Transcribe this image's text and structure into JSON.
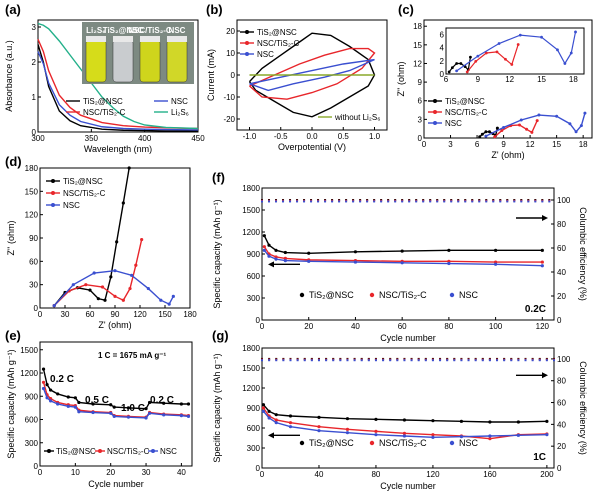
{
  "panels": {
    "a": {
      "letter": "(a)",
      "xlabel": "Wavelength (nm)",
      "ylabel": "Absorbance (a.u.)",
      "xticks": [
        "300",
        "350",
        "400",
        "450"
      ],
      "yticks": [
        "0",
        "1",
        "2",
        "3"
      ],
      "vial_labels": [
        "Li₂S₆",
        "TiS₂@NSC",
        "NSC/TiS₂-C",
        "NSC"
      ],
      "legend": [
        "TiS₂@NSC",
        "NSC",
        "NSC/TiS₂-C",
        "Li₂S₆"
      ]
    },
    "b": {
      "letter": "(b)",
      "xlabel": "Overpotential (V)",
      "ylabel": "Current (mA)",
      "xticks": [
        "-1.0",
        "-0.5",
        "0.0",
        "0.5",
        "1.0"
      ],
      "yticks": [
        "-20",
        "-10",
        "0",
        "10",
        "20"
      ],
      "legend": [
        "TiS₂@NSC",
        "NSC/TiS₂-C",
        "NSC"
      ],
      "note": "without Li₂S₆"
    },
    "c": {
      "letter": "(c)",
      "xlabel": "Z' (ohm)",
      "ylabel": "Z'' (ohm)",
      "xticks": [
        "0",
        "3",
        "6",
        "9",
        "12",
        "15",
        "18"
      ],
      "yticks": [
        "0",
        "3",
        "6",
        "9",
        "12",
        "15",
        "18"
      ],
      "inset_xticks": [
        "6",
        "9",
        "12",
        "15",
        "18"
      ],
      "inset_yticks": [
        "0",
        "2",
        "4",
        "6"
      ],
      "legend": [
        "TiS₂@NSC",
        "NSC/TiS₂-C",
        "NSC"
      ]
    },
    "d": {
      "letter": "(d)",
      "xlabel": "Z' (ohm)",
      "ylabel": "Z'' (ohm)",
      "xticks": [
        "0",
        "30",
        "60",
        "90",
        "120",
        "150",
        "180"
      ],
      "yticks": [
        "0",
        "30",
        "60",
        "90",
        "120",
        "150",
        "180"
      ],
      "legend": [
        "TiS₂@NSC",
        "NSC/TiS₂-C",
        "NSC"
      ]
    },
    "e": {
      "letter": "(e)",
      "xlabel": "Cycle number",
      "ylabel": "Specific capacity (mAh g⁻¹)",
      "xticks": [
        "0",
        "10",
        "20",
        "30",
        "40"
      ],
      "yticks": [
        "0",
        "300",
        "600",
        "900",
        "1200",
        "1500"
      ],
      "note": "1 C = 1675 mA g⁻¹",
      "rates": [
        "0.2 C",
        "0.5 C",
        "1.0 C",
        "0.2 C"
      ],
      "legend": [
        "TiS₂@NSC",
        "NSC/TiS₂-C",
        "NSC"
      ]
    },
    "f": {
      "letter": "(f)",
      "xlabel": "Cycle number",
      "ylabel": "Specific capacity (mAh g⁻¹)",
      "y2label": "Columbic efficiency (%)",
      "xticks": [
        "0",
        "20",
        "40",
        "60",
        "80",
        "100",
        "120"
      ],
      "yticks": [
        "0",
        "300",
        "600",
        "900",
        "1200",
        "1500",
        "1800"
      ],
      "y2ticks": [
        "0",
        "20",
        "40",
        "60",
        "80",
        "100"
      ],
      "rate": "0.2C",
      "legend": [
        "TiS₂@NSC",
        "NSC/TiS₂-C",
        "NSC"
      ]
    },
    "g": {
      "letter": "(g)",
      "xlabel": "Cycle number",
      "ylabel": "Specific capacity (mAh g⁻¹)",
      "y2label": "Columbic efficiency (%)",
      "xticks": [
        "0",
        "40",
        "80",
        "120",
        "160",
        "200"
      ],
      "yticks": [
        "0",
        "300",
        "600",
        "900",
        "1200",
        "1500",
        "1800"
      ],
      "y2ticks": [
        "0",
        "20",
        "40",
        "60",
        "80",
        "100"
      ],
      "rate": "1C",
      "legend": [
        "TiS₂@NSC",
        "NSC/TiS₂-C",
        "NSC"
      ]
    }
  },
  "colors": {
    "TiS2@NSC": "#000000",
    "NSC/TiS2-C": "#e8262b",
    "NSC": "#3a4fd0",
    "Li2S6": "#23b08a",
    "note": "#8aa82a"
  },
  "chart_data": [
    {
      "id": "a",
      "type": "line",
      "xlim": [
        300,
        450
      ],
      "ylim": [
        0,
        3.2
      ],
      "series": [
        {
          "name": "TiS₂@NSC",
          "x": [
            300,
            305,
            310,
            320,
            330,
            340,
            360,
            380,
            400,
            420,
            450
          ],
          "y": [
            2.5,
            2.0,
            1.3,
            0.6,
            0.32,
            0.18,
            0.08,
            0.05,
            0.04,
            0.03,
            0.03
          ]
        },
        {
          "name": "NSC",
          "x": [
            300,
            305,
            310,
            320,
            330,
            340,
            360,
            380,
            400,
            420,
            450
          ],
          "y": [
            2.3,
            1.95,
            1.4,
            0.78,
            0.48,
            0.3,
            0.15,
            0.1,
            0.08,
            0.07,
            0.06
          ]
        },
        {
          "name": "NSC/TiS₂-C",
          "x": [
            300,
            305,
            310,
            320,
            330,
            340,
            360,
            380,
            400,
            420,
            450
          ],
          "y": [
            2.65,
            2.3,
            1.75,
            1.05,
            0.7,
            0.48,
            0.27,
            0.18,
            0.14,
            0.12,
            0.1
          ]
        },
        {
          "name": "Li₂S₆",
          "x": [
            300,
            305,
            310,
            320,
            330,
            340,
            350,
            360,
            370,
            380,
            390,
            400,
            420,
            450
          ],
          "y": [
            3.1,
            3.05,
            2.95,
            2.6,
            2.2,
            1.8,
            1.4,
            1.0,
            0.7,
            0.45,
            0.3,
            0.2,
            0.13,
            0.1
          ]
        }
      ]
    },
    {
      "id": "b",
      "type": "line",
      "xlim": [
        -1.2,
        1.2
      ],
      "ylim": [
        -25,
        25
      ],
      "series": [
        {
          "name": "TiS₂@NSC",
          "x": [
            -1.0,
            -0.8,
            -0.5,
            -0.2,
            0.0,
            0.3,
            0.6,
            0.9,
            1.0,
            0.9,
            0.6,
            0.3,
            0.0,
            -0.3,
            -0.6,
            -0.9,
            -1.0
          ],
          "y": [
            -3,
            3,
            9,
            15,
            19,
            18,
            13,
            7,
            0,
            -5,
            -10,
            -15,
            -19,
            -17,
            -12,
            -7,
            -3
          ]
        },
        {
          "name": "NSC/TiS₂-C",
          "x": [
            -1.0,
            -0.6,
            -0.2,
            0.2,
            0.6,
            0.9,
            1.0,
            0.8,
            0.4,
            0.0,
            -0.4,
            -0.8,
            -1.0
          ],
          "y": [
            -5,
            0,
            5,
            9,
            12,
            12,
            10,
            3,
            -4,
            -8,
            -11,
            -10,
            -5
          ]
        },
        {
          "name": "NSC",
          "x": [
            -1.0,
            -0.5,
            0.0,
            0.5,
            1.0,
            0.6,
            0.2,
            -0.3,
            -0.7,
            -1.0
          ],
          "y": [
            -4,
            -1,
            2,
            5,
            7,
            2,
            -1,
            -4,
            -7,
            -4
          ]
        },
        {
          "name": "without Li₂S₆",
          "x": [
            -1.0,
            1.0
          ],
          "y": [
            0,
            0
          ]
        }
      ]
    },
    {
      "id": "c",
      "type": "scatter",
      "xlim": [
        0,
        19
      ],
      "ylim": [
        0,
        19
      ],
      "series": [
        {
          "name": "TiS₂@NSC",
          "x": [
            6.3,
            6.6,
            7.0,
            7.4,
            7.8,
            8.1,
            8.3
          ],
          "y": [
            0.2,
            0.6,
            1.0,
            1.0,
            0.7,
            0.4,
            1.6
          ]
        },
        {
          "name": "NSC/TiS₂-C",
          "x": [
            8.0,
            8.8,
            9.8,
            10.8,
            11.6,
            12.2,
            12.8
          ],
          "y": [
            0.2,
            1.2,
            2.0,
            2.1,
            1.4,
            0.9,
            2.8
          ]
        },
        {
          "name": "NSC",
          "x": [
            7.0,
            9.0,
            11.0,
            13.0,
            15.0,
            16.5,
            17.2,
            17.8,
            18.2
          ],
          "y": [
            0.3,
            1.7,
            2.9,
            3.7,
            3.5,
            2.3,
            1.0,
            2.0,
            4.0
          ]
        }
      ]
    },
    {
      "id": "d",
      "type": "scatter",
      "xlim": [
        0,
        180
      ],
      "ylim": [
        0,
        180
      ],
      "series": [
        {
          "name": "TiS₂@NSC",
          "x": [
            17,
            30,
            45,
            60,
            70,
            78,
            85,
            92,
            100,
            107
          ],
          "y": [
            3,
            20,
            26,
            23,
            12,
            10,
            40,
            85,
            135,
            180
          ]
        },
        {
          "name": "NSC/TiS₂-C",
          "x": [
            17,
            35,
            55,
            75,
            90,
            100,
            108,
            115,
            122
          ],
          "y": [
            3,
            22,
            30,
            27,
            15,
            10,
            25,
            55,
            88
          ]
        },
        {
          "name": "NSC",
          "x": [
            17,
            40,
            65,
            90,
            110,
            130,
            145,
            155,
            160
          ],
          "y": [
            3,
            30,
            45,
            48,
            42,
            25,
            10,
            5,
            15
          ]
        }
      ]
    },
    {
      "id": "e",
      "type": "scatter",
      "xlim": [
        0,
        43
      ],
      "ylim": [
        0,
        1600
      ],
      "series": [
        {
          "name": "TiS₂@NSC",
          "x": [
            1,
            2,
            3,
            5,
            8,
            10,
            11,
            15,
            20,
            21,
            25,
            30,
            31,
            35,
            40,
            42
          ],
          "y": [
            1250,
            1050,
            980,
            930,
            890,
            880,
            820,
            800,
            790,
            760,
            750,
            740,
            820,
            810,
            800,
            800
          ]
        },
        {
          "name": "NSC/TiS₂-C",
          "x": [
            1,
            2,
            3,
            5,
            8,
            10,
            11,
            15,
            20,
            21,
            25,
            30,
            31,
            35,
            40,
            42
          ],
          "y": [
            1080,
            920,
            870,
            820,
            790,
            780,
            720,
            700,
            690,
            650,
            640,
            630,
            690,
            670,
            660,
            650
          ]
        },
        {
          "name": "NSC",
          "x": [
            1,
            2,
            3,
            5,
            8,
            10,
            11,
            15,
            20,
            21,
            25,
            30,
            31,
            35,
            40,
            42
          ],
          "y": [
            1000,
            880,
            840,
            800,
            770,
            760,
            700,
            690,
            680,
            640,
            630,
            620,
            680,
            660,
            650,
            640
          ]
        }
      ]
    },
    {
      "id": "f",
      "type": "scatter",
      "xlim": [
        0,
        125
      ],
      "ylim": [
        0,
        1800
      ],
      "series": [
        {
          "name": "TiS₂@NSC",
          "x": [
            1,
            3,
            6,
            10,
            20,
            40,
            60,
            80,
            100,
            120
          ],
          "y": [
            1150,
            1020,
            950,
            920,
            910,
            930,
            940,
            950,
            950,
            950
          ]
        },
        {
          "name": "NSC/TiS₂-C",
          "x": [
            1,
            3,
            6,
            10,
            20,
            40,
            60,
            80,
            100,
            120
          ],
          "y": [
            1000,
            900,
            860,
            840,
            820,
            810,
            800,
            800,
            790,
            790
          ]
        },
        {
          "name": "NSC",
          "x": [
            1,
            3,
            6,
            10,
            20,
            40,
            60,
            80,
            100,
            120
          ],
          "y": [
            950,
            870,
            830,
            810,
            800,
            790,
            780,
            770,
            760,
            740
          ]
        }
      ]
    },
    {
      "id": "g",
      "type": "scatter",
      "xlim": [
        0,
        205
      ],
      "ylim": [
        0,
        1800
      ],
      "series": [
        {
          "name": "TiS₂@NSC",
          "x": [
            1,
            5,
            10,
            20,
            40,
            60,
            80,
            100,
            120,
            140,
            160,
            180,
            200
          ],
          "y": [
            950,
            850,
            800,
            780,
            760,
            740,
            730,
            720,
            710,
            700,
            690,
            690,
            700
          ]
        },
        {
          "name": "NSC/TiS₂-C",
          "x": [
            1,
            5,
            10,
            20,
            40,
            60,
            80,
            100,
            120,
            140,
            160,
            180,
            200
          ],
          "y": [
            900,
            780,
            720,
            680,
            620,
            580,
            550,
            520,
            500,
            480,
            440,
            500,
            510
          ]
        },
        {
          "name": "NSC",
          "x": [
            1,
            5,
            10,
            20,
            40,
            60,
            80,
            100,
            120,
            140,
            160,
            180,
            200
          ],
          "y": [
            850,
            750,
            680,
            620,
            560,
            530,
            500,
            480,
            460,
            470,
            480,
            490,
            500
          ]
        }
      ]
    }
  ]
}
